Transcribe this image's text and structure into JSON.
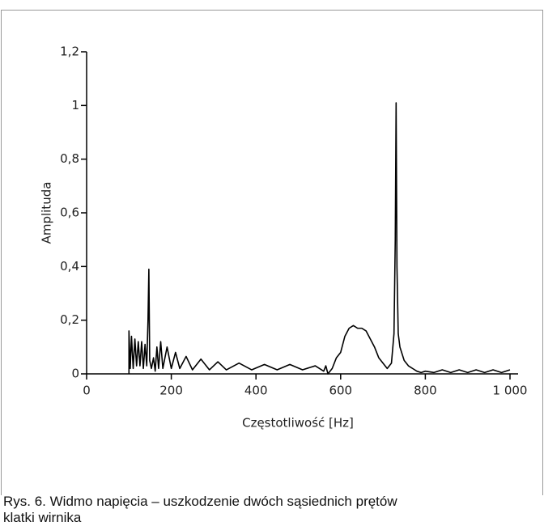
{
  "chart_data": {
    "type": "line",
    "xlabel": "Częstotliwość [Hz]",
    "ylabel": "Amplituda",
    "caption": [
      "Rys. 6. Widmo napięcia – uszkodzenie dwóch sąsiednich prętów",
      "klatki wirnika"
    ],
    "xlim": [
      0,
      1000
    ],
    "ylim": [
      0,
      1.2
    ],
    "xticks": [
      0,
      200,
      400,
      600,
      800,
      {
        "value": 1000,
        "label": "1 000"
      }
    ],
    "yticks": [
      0,
      {
        "value": 0.2,
        "label": "0,2"
      },
      {
        "value": 0.4,
        "label": "0,4"
      },
      {
        "value": 0.6,
        "label": "0,6"
      },
      {
        "value": 0.8,
        "label": "0,8"
      },
      1,
      {
        "value": 1.2,
        "label": "1,2"
      }
    ],
    "color": "#000000",
    "x": [
      100,
      100,
      103,
      106,
      110,
      114,
      118,
      122,
      126,
      130,
      134,
      138,
      142,
      145,
      147,
      149,
      153,
      158,
      162,
      166,
      170,
      175,
      180,
      190,
      200,
      210,
      220,
      235,
      250,
      270,
      290,
      310,
      330,
      360,
      390,
      420,
      450,
      480,
      510,
      540,
      560,
      565,
      570,
      580,
      590,
      600,
      610,
      620,
      630,
      640,
      650,
      660,
      670,
      680,
      690,
      700,
      710,
      720,
      726,
      729,
      731,
      733,
      736,
      740,
      750,
      760,
      770,
      780,
      790,
      800,
      820,
      840,
      860,
      880,
      900,
      920,
      940,
      960,
      980,
      1000
    ],
    "values": [
      0,
      0.16,
      0.02,
      0.14,
      0.02,
      0.13,
      0.03,
      0.12,
      0.03,
      0.12,
      0.02,
      0.11,
      0.03,
      0.2,
      0.39,
      0.05,
      0.02,
      0.06,
      0.01,
      0.1,
      0.02,
      0.12,
      0.02,
      0.1,
      0.02,
      0.08,
      0.02,
      0.065,
      0.015,
      0.055,
      0.015,
      0.045,
      0.015,
      0.04,
      0.015,
      0.035,
      0.015,
      0.035,
      0.015,
      0.03,
      0.01,
      0.03,
      0,
      0.02,
      0.06,
      0.08,
      0.14,
      0.17,
      0.18,
      0.17,
      0.17,
      0.16,
      0.13,
      0.1,
      0.06,
      0.04,
      0.02,
      0.04,
      0.15,
      0.5,
      1.01,
      0.4,
      0.15,
      0.1,
      0.05,
      0.03,
      0.02,
      0.01,
      0.005,
      0.01,
      0.005,
      0.015,
      0.005,
      0.015,
      0.005,
      0.015,
      0.005,
      0.015,
      0.005,
      0.015
    ]
  }
}
